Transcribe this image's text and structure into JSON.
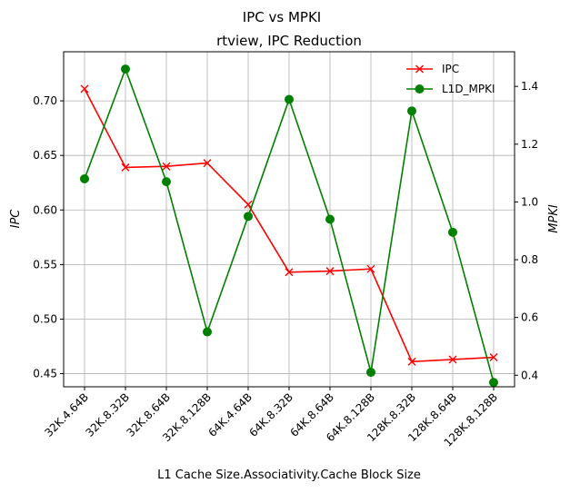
{
  "chart_data": {
    "type": "line",
    "suptitle": "IPC vs MPKI",
    "title": "rtview, IPC Reduction",
    "xlabel": "L1 Cache Size.Associativity.Cache Block Size",
    "ylabel_left": "IPC",
    "ylabel_right": "MPKI",
    "categories": [
      "32K.4.64B",
      "32K.8.32B",
      "32K.8.64B",
      "32K.8.128B",
      "64K.4.64B",
      "64K.8.32B",
      "64K.8.64B",
      "64K.8.128B",
      "128K.8.32B",
      "128K.8.64B",
      "128K.8.128B"
    ],
    "ylim_left": [
      0.438,
      0.745
    ],
    "yticks_left": [
      "0.45",
      "0.50",
      "0.55",
      "0.60",
      "0.65",
      "0.70"
    ],
    "ylim_right": [
      0.36,
      1.52
    ],
    "yticks_right": [
      "0.4",
      "0.6",
      "0.8",
      "1.0",
      "1.2",
      "1.4"
    ],
    "grid": true,
    "legend_position": "top-right",
    "series": [
      {
        "name": "IPC",
        "axis": "left",
        "color": "#ff0000",
        "marker": "x",
        "values": [
          0.711,
          0.639,
          0.64,
          0.643,
          0.605,
          0.543,
          0.544,
          0.546,
          0.461,
          0.463,
          0.465
        ]
      },
      {
        "name": "L1D_MPKI",
        "axis": "right",
        "color": "#008000",
        "marker": "circle",
        "values": [
          1.08,
          1.46,
          1.07,
          0.55,
          0.95,
          1.355,
          0.94,
          0.41,
          1.315,
          0.895,
          0.375
        ]
      }
    ]
  }
}
